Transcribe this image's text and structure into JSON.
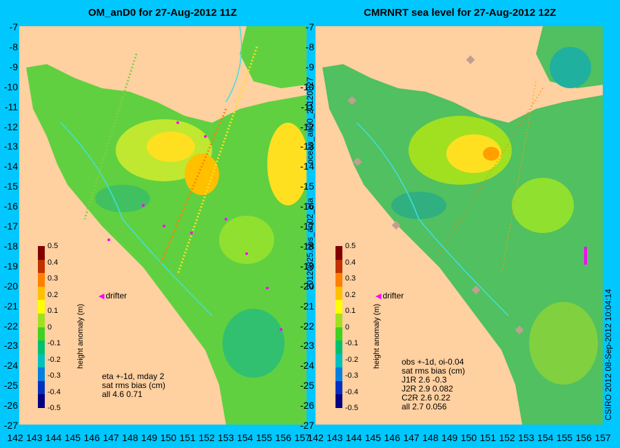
{
  "left_panel": {
    "title": "OM_anD0 for 27-Aug-2012 11Z",
    "stats": [
      "eta +-1d, mday 2",
      "sat rms bias (cm)",
      "all 4.6 0.71"
    ]
  },
  "right_panel": {
    "title": "CMRNRT sea level  for 27-Aug-2012 12Z",
    "stats": [
      "obs +-1d, oi-0.04",
      "sat rms bias (cm)",
      "J1R   2.6 -0.3",
      "J2R   2.9 0.082",
      "C2R   2.6 0.22",
      "all 2.7 0.056"
    ]
  },
  "colorbar": {
    "title": "height anomaly (m)",
    "ticks": [
      "0.5",
      "0.4",
      "0.3",
      "0.2",
      "0.1",
      "0",
      "-0.1",
      "-0.2",
      "-0.3",
      "-0.4",
      "-0.5"
    ],
    "colors": [
      "#000080",
      "#0030c0",
      "#0080e0",
      "#00c0c0",
      "#00c070",
      "#40d020",
      "#a0e020",
      "#ffff00",
      "#ffc000",
      "#ff8000",
      "#c03000",
      "#800000"
    ]
  },
  "legend": {
    "drifter_label": "drifter"
  },
  "side_labels": {
    "middle_top": "ocean_an00_20120827",
    "middle_bottom": "20120825.obs_an02_eta",
    "right": "CSIRO 2012   08-Sep-2012 10:04:14"
  },
  "axes": {
    "y_ticks": [
      "-7",
      "-8",
      "-9",
      "-10",
      "-11",
      "-12",
      "-13",
      "-14",
      "-15",
      "-16",
      "-17",
      "-18",
      "-19",
      "-20",
      "-21",
      "-22",
      "-23",
      "-24",
      "-25",
      "-26",
      "-27"
    ],
    "x_ticks": [
      "142",
      "143",
      "144",
      "145",
      "146",
      "147",
      "148",
      "149",
      "150",
      "151",
      "152",
      "153",
      "154",
      "155",
      "156",
      "157"
    ]
  },
  "colors": {
    "background": "#00c8ff",
    "land": "#ffd0a0",
    "drifter": "#ff00ff",
    "contour": "#40e0e0"
  }
}
